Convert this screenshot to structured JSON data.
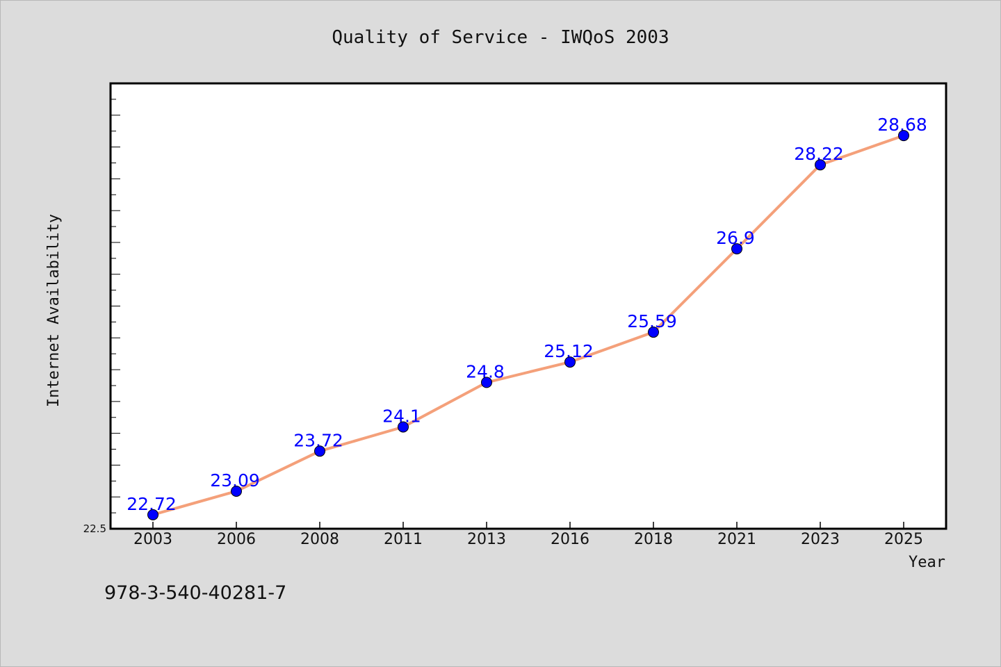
{
  "chart_data": {
    "type": "line",
    "title": "Quality of Service - IWQoS 2003",
    "xlabel": "Year",
    "ylabel": "Internet Availability",
    "categories": [
      "2003",
      "2006",
      "2008",
      "2011",
      "2013",
      "2016",
      "2018",
      "2021",
      "2023",
      "2025"
    ],
    "series": [
      {
        "values": [
          22.72,
          23.09,
          23.72,
          24.1,
          24.8,
          25.12,
          25.59,
          26.9,
          28.22,
          28.68
        ]
      }
    ],
    "data_labels": [
      "22.72",
      "23.09",
      "23.72",
      "24.1",
      "24.8",
      "25.12",
      "25.59",
      "26.9",
      "28.22",
      "28.68"
    ],
    "y_tick_labels": [
      "22.5"
    ],
    "ylim": [
      22.5,
      29.5
    ],
    "grid": false,
    "legend": "none",
    "line_color": "#f4a07a",
    "marker_color": "#0000ff",
    "label_color": "#0000ff"
  },
  "footer_text": "978-3-540-40281-7"
}
